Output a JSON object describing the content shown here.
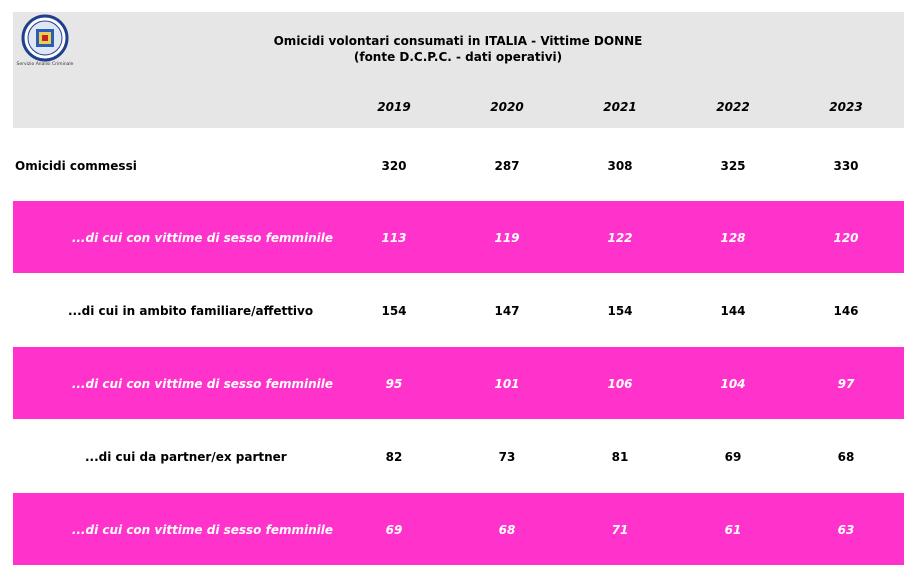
{
  "header": {
    "title_line1": "Omicidi volontari consumati in ITALIA - Vittime DONNE",
    "title_line2": "(fonte D.C.P.C. - dati operativi)",
    "logo_caption": "Servizio Analisi Criminale"
  },
  "chart_data": {
    "type": "table",
    "columns": [
      "2019",
      "2020",
      "2021",
      "2022",
      "2023"
    ],
    "rows": [
      {
        "label": "Omicidi commessi",
        "values": [
          "320",
          "287",
          "308",
          "325",
          "330"
        ]
      },
      {
        "label": "...di cui con vittime di sesso femminile",
        "values": [
          "113",
          "119",
          "122",
          "128",
          "120"
        ]
      },
      {
        "label": "...di cui in ambito familiare/affettivo",
        "values": [
          "154",
          "147",
          "154",
          "144",
          "146"
        ]
      },
      {
        "label": "...di cui con vittime di sesso femminile",
        "values": [
          "95",
          "101",
          "106",
          "104",
          "97"
        ]
      },
      {
        "label": "...di cui da partner/ex partner",
        "values": [
          "82",
          "73",
          "81",
          "69",
          "68"
        ]
      },
      {
        "label": "...di cui con vittime di sesso femminile",
        "values": [
          "69",
          "68",
          "71",
          "61",
          "63"
        ]
      }
    ]
  },
  "colors": {
    "header_bg": "#e6e6e6",
    "highlight_row_bg": "#ff33cc",
    "highlight_row_text": "#ffffff"
  }
}
